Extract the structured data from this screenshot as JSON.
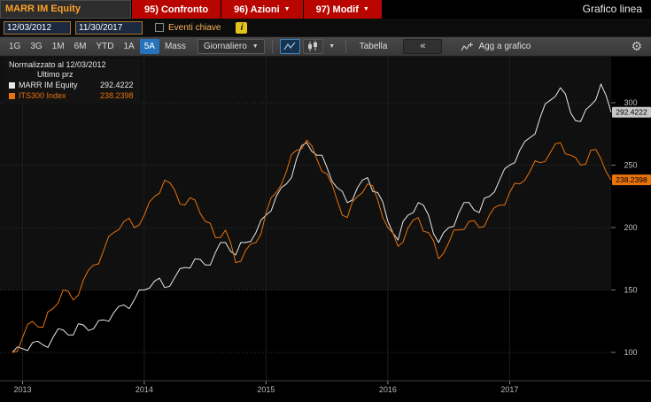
{
  "titlebar": {
    "ticker": "MARR IM Equity",
    "menus": [
      {
        "name": "confronto",
        "label": "95) Confronto",
        "caret": false
      },
      {
        "name": "azioni",
        "label": "96) Azioni",
        "caret": true
      },
      {
        "name": "modif",
        "label": "97) Modif",
        "caret": true
      }
    ],
    "right_title": "Grafico linea"
  },
  "daterow": {
    "start_date": "12/03/2012",
    "end_date": "11/30/2017",
    "events_label": "Eventi chiave",
    "info_icon": "i"
  },
  "toolbar": {
    "ranges": [
      "1G",
      "3G",
      "1M",
      "6M",
      "YTD",
      "1A",
      "5A",
      "Mass"
    ],
    "selected_range": "5A",
    "frequency": "Giornaliero",
    "table_label": "Tabella",
    "collapse_label": "«",
    "add_chart_label": "Agg a grafico",
    "gear_icon": "⚙"
  },
  "legend": {
    "line1": "Normalizzato al 12/03/2012",
    "line2": "Ultimo prz",
    "series": [
      {
        "name": "MARR IM Equity",
        "value": "292.4222",
        "color": "#e8e8e8"
      },
      {
        "name": "ITS300 Index",
        "value": "238.2398",
        "color": "#e8720c"
      }
    ]
  },
  "colors": {
    "menu_red": "#b80500",
    "amber": "#ffa028",
    "accent_blue": "#2673bb",
    "series_white": "#e8e8e8",
    "series_orange": "#e8720c"
  },
  "chart_data": {
    "type": "line",
    "title": "Normalizzato al 12/03/2012",
    "normalized_to": 100,
    "x_start": "12/2012",
    "x_end": "11/2017",
    "x_ticks": [
      "2013",
      "2014",
      "2015",
      "2016",
      "2017"
    ],
    "y_ticks": [
      100,
      150,
      200,
      250,
      300
    ],
    "ylim": [
      76,
      337
    ],
    "grid": true,
    "legend_position": "top-left",
    "series": [
      {
        "name": "MARR IM Equity",
        "color": "#e8e8e8",
        "badge_bg": "#c8c8c8",
        "last_label": "292.4222",
        "values": [
          100,
          103,
          108,
          106,
          112,
          118,
          114,
          122,
          119,
          126,
          132,
          138,
          142,
          150,
          157,
          152,
          160,
          168,
          175,
          170,
          180,
          188,
          178,
          188,
          196,
          210,
          225,
          235,
          255,
          268,
          258,
          248,
          232,
          220,
          232,
          240,
          228,
          205,
          190,
          210,
          220,
          210,
          188,
          200,
          212,
          220,
          212,
          225,
          238,
          250,
          262,
          272,
          288,
          302,
          312,
          292,
          285,
          298,
          315,
          292.4222
        ]
      },
      {
        "name": "ITS300 Index",
        "color": "#e8720c",
        "badge_bg": "#e8720c",
        "last_label": "238.2398",
        "values": [
          100,
          112,
          125,
          120,
          135,
          150,
          142,
          158,
          170,
          182,
          196,
          205,
          200,
          210,
          225,
          238,
          230,
          218,
          222,
          205,
          192,
          198,
          172,
          182,
          188,
          212,
          228,
          245,
          262,
          270,
          255,
          243,
          222,
          208,
          225,
          235,
          222,
          200,
          185,
          200,
          208,
          196,
          175,
          188,
          198,
          205,
          200,
          210,
          218,
          228,
          235,
          245,
          252,
          260,
          268,
          258,
          250,
          262,
          255,
          238.2398
        ]
      }
    ]
  }
}
